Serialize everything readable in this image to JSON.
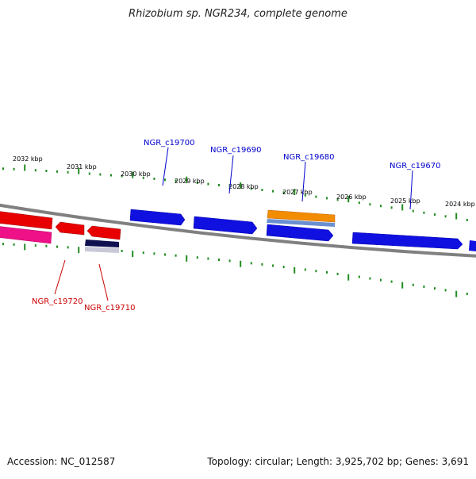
{
  "header": {
    "title": "Rhizobium sp. NGR234, complete genome"
  },
  "footer": {
    "accession": "Accession: NC_012587",
    "summary": "Topology: circular; Length: 3,925,702 bp; Genes: 3,691"
  },
  "colors": {
    "backbone": "#808080",
    "forward_gene": "#0000ee",
    "reverse_gene": "#ee0000",
    "reverse_gene_alt": "#ee1177",
    "forward_gene_alt": "#ff8c00",
    "tick": "#228b22",
    "forward_label": "#0000cc",
    "reverse_label": "#cc0000"
  },
  "scale": {
    "labels": [
      "2032 kbp",
      "2031 kbp",
      "2030 kbp",
      "2029 kbp",
      "2028 kbp",
      "2027 kbp",
      "2026 kbp",
      "2025 kbp",
      "2024 kbp"
    ]
  },
  "genes": {
    "forward": [
      "NGR_c19700",
      "NGR_c19690",
      "NGR_c19680",
      "NGR_c19670"
    ],
    "reverse": [
      "NGR_c19720",
      "NGR_c19710"
    ]
  }
}
